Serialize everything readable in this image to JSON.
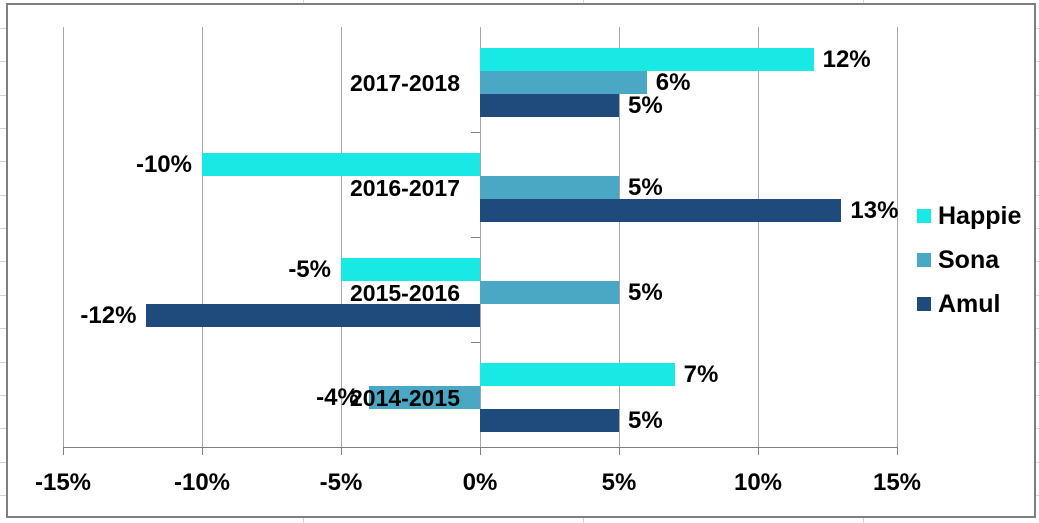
{
  "chart_data": {
    "type": "bar",
    "orientation": "horizontal",
    "categories": [
      "2017-2018",
      "2016-2017",
      "2015-2016",
      "2014-2015"
    ],
    "series": [
      {
        "name": "Happie",
        "color": "#18E9E4",
        "values": [
          12,
          -10,
          -5,
          7
        ],
        "labels": [
          "12%",
          "-10%",
          "-5%",
          "7%"
        ]
      },
      {
        "name": "Sona",
        "color": "#4AA8C4",
        "values": [
          6,
          5,
          5,
          -4
        ],
        "labels": [
          "6%",
          "5%",
          "5%",
          "-4%"
        ]
      },
      {
        "name": "Amul",
        "color": "#1F4B7C",
        "values": [
          5,
          13,
          -12,
          5
        ],
        "labels": [
          "5%",
          "13%",
          "-12%",
          "5%"
        ]
      }
    ],
    "x_axis": {
      "tick_labels": [
        "-15%",
        "-10%",
        "-5%",
        "0%",
        "5%",
        "10%",
        "15%"
      ],
      "tick_values": [
        -15,
        -10,
        -5,
        0,
        5,
        10,
        15
      ],
      "range": [
        -15,
        15
      ]
    },
    "legend": {
      "position": "right",
      "entries": [
        "Happie",
        "Sona",
        "Amul"
      ]
    },
    "grid": "vertical",
    "value_label_suffix": "%"
  },
  "colors": {
    "gridline": "#A6A6A6",
    "axis": "#808080",
    "chart_border": "#7F7F7F",
    "text": "#000000",
    "sheet_gridline": "#CDD4E3",
    "background": "#FFFFFF"
  }
}
